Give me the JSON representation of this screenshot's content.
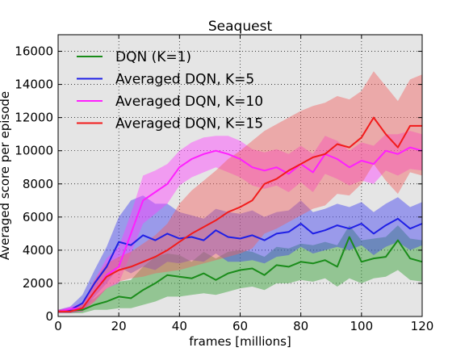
{
  "chart_data": {
    "type": "line",
    "title": "Seaquest",
    "xlabel": "frames [millions]",
    "ylabel": "Averaged score per episode",
    "xlim": [
      0,
      120
    ],
    "ylim": [
      0,
      17000
    ],
    "xticks": [
      0,
      20,
      40,
      60,
      80,
      100,
      120
    ],
    "yticks": [
      0,
      2000,
      4000,
      6000,
      8000,
      10000,
      12000,
      14000,
      16000
    ],
    "grid": true,
    "grid_style": "dotted",
    "background": "#e5e5e5",
    "legend_position": "top-left",
    "series": [
      {
        "name": "DQN (K=1)",
        "color": "#1a8c1a",
        "band_color": "#2e9e2e",
        "x": [
          0,
          4,
          8,
          12,
          16,
          20,
          24,
          28,
          32,
          36,
          40,
          44,
          48,
          52,
          56,
          60,
          64,
          68,
          72,
          76,
          80,
          84,
          88,
          92,
          96,
          100,
          104,
          108,
          112,
          116,
          120
        ],
        "y": [
          300,
          350,
          400,
          700,
          900,
          1200,
          1100,
          1600,
          2000,
          2500,
          2400,
          2300,
          2600,
          2200,
          2600,
          2800,
          2900,
          2500,
          3100,
          3000,
          3300,
          3200,
          3400,
          3000,
          4800,
          3300,
          3500,
          3600,
          4600,
          3500,
          3300
        ],
        "upper": [
          400,
          500,
          700,
          1100,
          1700,
          2100,
          2200,
          3000,
          3600,
          3800,
          3700,
          3300,
          3900,
          3500,
          3900,
          4000,
          3900,
          3600,
          4200,
          4100,
          4400,
          4300,
          4500,
          4300,
          5500,
          4600,
          4700,
          4800,
          5500,
          4700,
          4600
        ],
        "lower": [
          200,
          200,
          200,
          400,
          400,
          500,
          500,
          700,
          900,
          1200,
          1200,
          1300,
          1400,
          1300,
          1500,
          1700,
          1800,
          1600,
          2000,
          2000,
          2200,
          2100,
          2300,
          1800,
          2300,
          2000,
          2300,
          2400,
          2800,
          2200,
          2100
        ]
      },
      {
        "name": "Averaged DQN, K=5",
        "color": "#1f1fe6",
        "band_color": "#3f3ff0",
        "x": [
          0,
          4,
          8,
          12,
          16,
          20,
          24,
          28,
          32,
          36,
          40,
          44,
          48,
          52,
          56,
          60,
          64,
          68,
          72,
          76,
          80,
          84,
          88,
          92,
          96,
          100,
          104,
          108,
          112,
          116,
          120
        ],
        "y": [
          300,
          400,
          800,
          2000,
          3000,
          4500,
          4300,
          4900,
          4600,
          5000,
          4700,
          4800,
          4600,
          5200,
          4800,
          4700,
          4900,
          4600,
          5000,
          5100,
          5600,
          5000,
          5200,
          5500,
          5300,
          5600,
          5000,
          5500,
          5900,
          5300,
          5600
        ],
        "upper": [
          400,
          600,
          1300,
          2800,
          4200,
          6000,
          7000,
          7300,
          6800,
          6800,
          6300,
          6100,
          5900,
          6500,
          6300,
          6200,
          6400,
          6000,
          6300,
          6400,
          7000,
          6300,
          6500,
          6800,
          6600,
          6900,
          6300,
          6800,
          7200,
          6600,
          6900
        ],
        "lower": [
          200,
          200,
          300,
          1200,
          2000,
          3000,
          2600,
          3000,
          2800,
          3300,
          3200,
          3400,
          3300,
          3800,
          3300,
          3300,
          3400,
          3200,
          3600,
          3700,
          4200,
          3800,
          4000,
          4200,
          4000,
          4300,
          3700,
          4200,
          4500,
          4000,
          4300
        ]
      },
      {
        "name": "Averaged DQN, K=10",
        "color": "#ff1fff",
        "band_color": "#ff40ff",
        "x": [
          0,
          4,
          8,
          12,
          16,
          20,
          24,
          28,
          32,
          36,
          40,
          44,
          48,
          52,
          56,
          60,
          64,
          68,
          72,
          76,
          80,
          84,
          88,
          92,
          96,
          100,
          104,
          108,
          112,
          116,
          120
        ],
        "y": [
          300,
          450,
          500,
          1500,
          2500,
          3000,
          5000,
          7000,
          7500,
          8000,
          9000,
          9500,
          9800,
          10000,
          9800,
          9500,
          9000,
          8800,
          9000,
          8600,
          9200,
          8700,
          9800,
          9500,
          9000,
          9400,
          9200,
          10000,
          9800,
          10200,
          10000
        ],
        "upper": [
          400,
          600,
          800,
          2200,
          3500,
          4200,
          6200,
          8500,
          8800,
          9200,
          10000,
          10500,
          10800,
          10900,
          10900,
          10600,
          10100,
          9900,
          10100,
          9800,
          10300,
          9800,
          10900,
          10600,
          10000,
          10500,
          10300,
          11000,
          11000,
          11200,
          11000
        ],
        "lower": [
          200,
          300,
          300,
          900,
          1700,
          2000,
          3800,
          5600,
          6200,
          6800,
          7900,
          8400,
          8700,
          9000,
          8700,
          8400,
          7900,
          7700,
          7900,
          7500,
          8100,
          7500,
          8600,
          8300,
          7900,
          8200,
          8000,
          8800,
          8500,
          8900,
          8800
        ]
      },
      {
        "name": "Averaged DQN, K=15",
        "color": "#f21b1b",
        "band_color": "#f26060",
        "x": [
          0,
          4,
          8,
          12,
          16,
          20,
          24,
          28,
          32,
          36,
          40,
          44,
          48,
          52,
          56,
          60,
          64,
          68,
          72,
          76,
          80,
          84,
          88,
          92,
          96,
          100,
          104,
          108,
          112,
          116,
          120
        ],
        "y": [
          300,
          300,
          500,
          1500,
          2400,
          2800,
          3000,
          3300,
          3600,
          4000,
          4500,
          5000,
          5400,
          5800,
          6300,
          6600,
          7000,
          8000,
          8300,
          8800,
          9200,
          9600,
          9800,
          10400,
          10200,
          10800,
          12000,
          11000,
          10200,
          11500,
          11500
        ],
        "upper": [
          400,
          400,
          800,
          2200,
          3200,
          3600,
          3900,
          4400,
          4900,
          5600,
          6800,
          7600,
          8200,
          8800,
          9500,
          10000,
          10600,
          11200,
          11600,
          12000,
          12400,
          12700,
          12900,
          13300,
          13100,
          13600,
          14800,
          13900,
          13000,
          14300,
          14600
        ],
        "lower": [
          200,
          200,
          300,
          900,
          1700,
          2100,
          2300,
          2400,
          2600,
          2700,
          2800,
          3000,
          3200,
          3400,
          3600,
          3800,
          4100,
          5000,
          5300,
          5700,
          6100,
          6500,
          6700,
          7400,
          7300,
          8000,
          9200,
          8200,
          7400,
          8700,
          8500
        ]
      }
    ]
  }
}
